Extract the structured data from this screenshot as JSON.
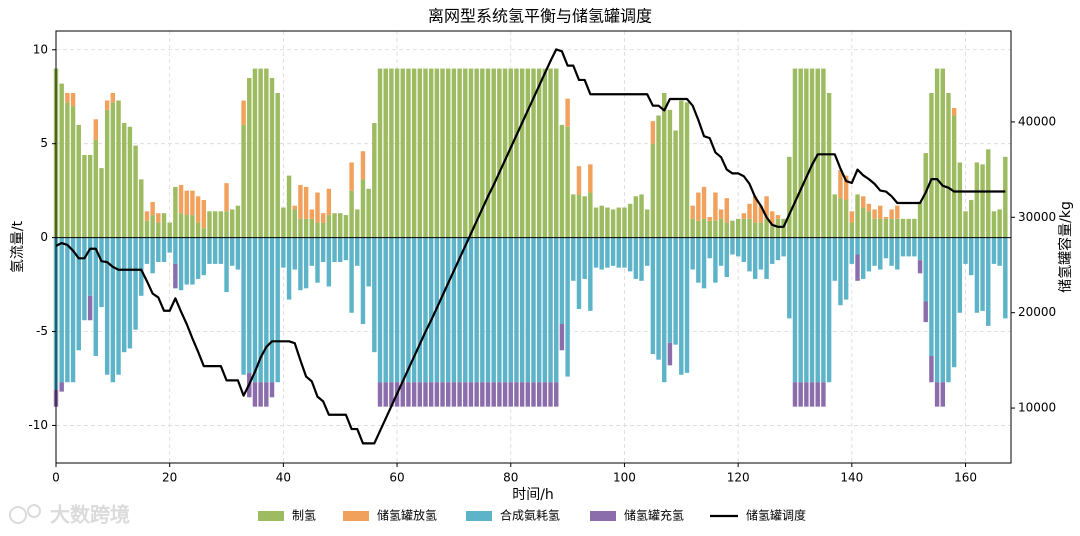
{
  "chart_data": {
    "type": "bar",
    "title": "离网型系统氢平衡与储氢罐调度",
    "x_label": "时间/h",
    "y_label": "氢流量/t",
    "y2_label": "储氢罐容量/kg",
    "watermark": "大数跨境",
    "xlim": [
      0,
      168
    ],
    "ylim": [
      -12,
      11
    ],
    "y2lim": [
      4240,
      49530
    ],
    "xticks": [
      0,
      20,
      40,
      60,
      80,
      100,
      120,
      140,
      160
    ],
    "yticks": [
      -10,
      -5,
      0,
      5,
      10
    ],
    "y2ticks": [
      10000,
      20000,
      30000,
      40000
    ],
    "grid": true,
    "legend": "bottom",
    "x": [
      0,
      1,
      2,
      3,
      4,
      5,
      6,
      7,
      8,
      9,
      10,
      11,
      12,
      13,
      14,
      15,
      16,
      17,
      18,
      19,
      20,
      21,
      22,
      23,
      24,
      25,
      26,
      27,
      28,
      29,
      30,
      31,
      32,
      33,
      34,
      35,
      36,
      37,
      38,
      39,
      40,
      41,
      42,
      43,
      44,
      45,
      46,
      47,
      48,
      49,
      50,
      51,
      52,
      53,
      54,
      55,
      56,
      57,
      58,
      59,
      60,
      61,
      62,
      63,
      64,
      65,
      66,
      67,
      68,
      69,
      70,
      71,
      72,
      73,
      74,
      75,
      76,
      77,
      78,
      79,
      80,
      81,
      82,
      83,
      84,
      85,
      86,
      87,
      88,
      89,
      90,
      91,
      92,
      93,
      94,
      95,
      96,
      97,
      98,
      99,
      100,
      101,
      102,
      103,
      104,
      105,
      106,
      107,
      108,
      109,
      110,
      111,
      112,
      113,
      114,
      115,
      116,
      117,
      118,
      119,
      120,
      121,
      122,
      123,
      124,
      125,
      126,
      127,
      128,
      129,
      130,
      131,
      132,
      133,
      134,
      135,
      136,
      137,
      138,
      139,
      140,
      141,
      142,
      143,
      144,
      145,
      146,
      147,
      148,
      149,
      150,
      151,
      152,
      153,
      154,
      155,
      156,
      157,
      158,
      159,
      160,
      161,
      162,
      163,
      164,
      165,
      166,
      167
    ],
    "series": [
      {
        "name": "制氢",
        "color": "#9dbb61",
        "values": [
          9.0,
          8.2,
          7.2,
          7.0,
          6.0,
          4.4,
          4.4,
          5.2,
          3.7,
          6.8,
          7.2,
          7.3,
          6.1,
          5.9,
          4.9,
          3.1,
          0.9,
          1.2,
          0.8,
          1.3,
          0.8,
          2.7,
          1.3,
          1.2,
          1.2,
          0.8,
          0.5,
          1.4,
          1.4,
          1.4,
          1.4,
          1.5,
          1.7,
          6.0,
          8.5,
          9.0,
          9.0,
          9.0,
          8.5,
          7.7,
          1.6,
          3.3,
          1.5,
          1.0,
          1.0,
          1.0,
          0.8,
          0.8,
          1.2,
          1.3,
          1.3,
          1.2,
          2.5,
          1.5,
          3.1,
          2.6,
          6.1,
          9.0,
          9.0,
          9.0,
          9.0,
          9.0,
          9.0,
          9.0,
          9.0,
          9.0,
          9.0,
          9.0,
          9.0,
          9.0,
          9.0,
          9.0,
          9.0,
          9.0,
          9.0,
          9.0,
          9.0,
          9.0,
          9.0,
          9.0,
          9.0,
          9.0,
          9.0,
          9.0,
          9.0,
          9.0,
          9.0,
          9.0,
          9.0,
          6.0,
          5.9,
          2.3,
          2.3,
          2.2,
          2.4,
          1.6,
          1.7,
          1.6,
          1.5,
          1.6,
          1.6,
          1.8,
          2.2,
          2.3,
          1.5,
          5.0,
          6.5,
          7.7,
          6.8,
          5.7,
          7.3,
          7.2,
          1.0,
          0.9,
          1.0,
          0.9,
          0.9,
          1.0,
          0.8,
          0.9,
          1.0,
          1.0,
          1.0,
          0.8,
          0.8,
          1.0,
          0.6,
          1.0,
          1.0,
          4.3,
          9.0,
          9.0,
          9.0,
          9.0,
          9.0,
          9.0,
          7.7,
          2.3,
          2.1,
          2.0,
          0.8,
          2.3,
          1.6,
          1.4,
          1.0,
          1.0,
          1.0,
          1.0,
          1.0,
          1.0,
          1.0,
          1.0,
          1.9,
          4.5,
          7.7,
          9.0,
          9.0,
          7.7,
          6.5,
          4.0,
          1.4,
          2.0,
          4.0,
          3.9,
          4.7,
          1.4,
          1.5,
          4.3
        ]
      },
      {
        "name": "储氢罐放氢",
        "color": "#f2a15c",
        "values": [
          0,
          0,
          0.5,
          0.7,
          0,
          0,
          0,
          1.1,
          0,
          0.5,
          0.5,
          0,
          0,
          0,
          0,
          0,
          0.5,
          0.7,
          0.5,
          0,
          0,
          0,
          1.5,
          1.3,
          1.3,
          1.4,
          1.5,
          0,
          0,
          0,
          1.5,
          0,
          0,
          1.3,
          0,
          0,
          0,
          0,
          0,
          0,
          0,
          0,
          0.2,
          1.8,
          1.7,
          0.5,
          1.6,
          0.5,
          1.4,
          0,
          0,
          0,
          1.5,
          0,
          1.5,
          0,
          0,
          0,
          0,
          0,
          0,
          0,
          0,
          0,
          0,
          0,
          0,
          0,
          0,
          0,
          0,
          0,
          0,
          0,
          0,
          0,
          0,
          0,
          0,
          0,
          0,
          0,
          0,
          0,
          0,
          0,
          0,
          0,
          0,
          0,
          1.5,
          0,
          1.5,
          0,
          1.5,
          0,
          0,
          0,
          0,
          0,
          0,
          0,
          0,
          0,
          0,
          1.2,
          0,
          0,
          0,
          0,
          0,
          0,
          0.7,
          1.5,
          1.7,
          0.2,
          1.5,
          0.5,
          1.3,
          0,
          0,
          0.3,
          0.8,
          1.4,
          0.9,
          1.2,
          0.8,
          0.2,
          0,
          0,
          0,
          0,
          0,
          0,
          0,
          0,
          0,
          0,
          1.5,
          1.3,
          0.6,
          0,
          0.6,
          0.4,
          0.5,
          0.7,
          0.1,
          0.5,
          0.7,
          0,
          0,
          0,
          0,
          0,
          0,
          0,
          0,
          0,
          0.4,
          0,
          0,
          0,
          0,
          0,
          0,
          0,
          0,
          0
        ]
      },
      {
        "name": "合成氨耗氢",
        "color": "#5db4c9",
        "values": [
          -8.1,
          -7.7,
          -7.7,
          -7.7,
          -6.0,
          -4.4,
          -3.1,
          -6.3,
          -3.7,
          -7.3,
          -7.7,
          -7.3,
          -6.1,
          -5.9,
          -4.9,
          -3.1,
          -1.4,
          -1.9,
          -1.3,
          -1.3,
          -0.8,
          -1.4,
          -2.8,
          -2.5,
          -2.5,
          -2.2,
          -2.0,
          -1.4,
          -1.4,
          -1.4,
          -2.9,
          -1.5,
          -1.7,
          -7.3,
          -7.2,
          -7.7,
          -7.7,
          -7.7,
          -7.7,
          -7.7,
          -1.6,
          -3.3,
          -1.7,
          -2.8,
          -2.7,
          -1.5,
          -2.4,
          -1.3,
          -2.6,
          -1.3,
          -1.3,
          -1.2,
          -4.0,
          -1.5,
          -4.6,
          -2.6,
          -6.1,
          -7.7,
          -7.7,
          -7.7,
          -7.7,
          -7.7,
          -7.7,
          -7.7,
          -7.7,
          -7.7,
          -7.7,
          -7.7,
          -7.7,
          -7.7,
          -7.7,
          -7.7,
          -7.7,
          -7.7,
          -7.7,
          -7.7,
          -7.7,
          -7.7,
          -7.7,
          -7.7,
          -7.7,
          -7.7,
          -7.7,
          -7.7,
          -7.7,
          -7.7,
          -7.7,
          -7.7,
          -7.7,
          -4.6,
          -7.4,
          -2.3,
          -3.8,
          -2.2,
          -3.9,
          -1.6,
          -1.7,
          -1.6,
          -1.5,
          -1.6,
          -1.6,
          -1.8,
          -2.2,
          -2.3,
          -1.5,
          -6.2,
          -6.5,
          -7.7,
          -5.6,
          -5.7,
          -7.3,
          -7.2,
          -1.7,
          -2.4,
          -2.7,
          -1.1,
          -2.4,
          -1.5,
          -2.1,
          -0.9,
          -1.0,
          -1.3,
          -1.8,
          -2.2,
          -1.7,
          -2.2,
          -1.4,
          -1.2,
          -1.0,
          -4.3,
          -7.7,
          -7.7,
          -7.7,
          -7.7,
          -7.7,
          -7.7,
          -7.7,
          -2.3,
          -3.6,
          -3.3,
          -1.4,
          -0.9,
          -2.2,
          -1.8,
          -1.5,
          -1.7,
          -1.1,
          -1.5,
          -1.7,
          -1.0,
          -1.0,
          -1.0,
          -1.2,
          -3.4,
          -6.3,
          -7.7,
          -7.7,
          -7.7,
          -6.9,
          -4.0,
          -1.4,
          -2.0,
          -4.0,
          -3.9,
          -4.7,
          -1.4,
          -1.5,
          -4.3
        ]
      },
      {
        "name": "储氢罐充氢",
        "color": "#8c6dab",
        "values": [
          -0.9,
          -0.5,
          0,
          0,
          0,
          0,
          -1.3,
          0,
          0,
          0,
          0,
          0,
          0,
          0,
          0,
          0,
          0,
          0,
          0,
          0,
          0,
          -1.3,
          0,
          0,
          0,
          0,
          0,
          0,
          0,
          0,
          0,
          0,
          0,
          0,
          -1.3,
          -1.3,
          -1.3,
          -1.3,
          -0.8,
          0,
          0,
          0,
          0,
          0,
          0,
          0,
          0,
          0,
          0,
          0,
          0,
          0,
          0,
          0,
          0,
          0,
          0,
          -1.3,
          -1.3,
          -1.3,
          -1.3,
          -1.3,
          -1.3,
          -1.3,
          -1.3,
          -1.3,
          -1.3,
          -1.3,
          -1.3,
          -1.3,
          -1.3,
          -1.3,
          -1.3,
          -1.3,
          -1.3,
          -1.3,
          -1.3,
          -1.3,
          -1.3,
          -1.3,
          -1.3,
          -1.3,
          -1.3,
          -1.3,
          -1.3,
          -1.3,
          -1.3,
          -1.3,
          -1.3,
          -1.4,
          0,
          0,
          0,
          0,
          0,
          0,
          0,
          0,
          0,
          0,
          0,
          0,
          0,
          0,
          0,
          0,
          0,
          0,
          -1.2,
          0,
          0,
          0,
          0,
          0,
          0,
          0,
          0,
          0,
          0,
          0,
          0,
          0,
          0,
          0,
          0,
          0,
          0,
          0,
          0,
          0,
          -1.3,
          -1.3,
          -1.3,
          -1.3,
          -1.3,
          -1.3,
          0,
          0,
          0,
          0,
          0,
          -1.4,
          0,
          0,
          0,
          0,
          0,
          0,
          0,
          0,
          0,
          0,
          -0.7,
          -1.1,
          -1.4,
          -1.3,
          -1.3,
          0,
          0,
          0,
          0,
          0,
          0,
          0,
          0,
          0,
          0,
          0
        ]
      },
      {
        "name": "储氢罐调度",
        "color": "#000000",
        "type": "line",
        "axis": "y2",
        "values": [
          27000,
          27300,
          27100,
          26500,
          25700,
          25700,
          26700,
          26700,
          25400,
          25300,
          24800,
          24500,
          24500,
          24500,
          24500,
          24500,
          23300,
          22000,
          21600,
          20200,
          20200,
          21500,
          20100,
          18800,
          17300,
          15900,
          14400,
          14400,
          14400,
          14400,
          12900,
          12900,
          12900,
          11300,
          12500,
          13800,
          15300,
          16400,
          17000,
          17000,
          17000,
          17000,
          16800,
          15000,
          13300,
          12800,
          11200,
          10700,
          9300,
          9300,
          9300,
          9300,
          7800,
          7800,
          6300,
          6300,
          6300,
          7600,
          8900,
          10200,
          11500,
          12800,
          14100,
          15400,
          16700,
          18000,
          19200,
          20500,
          21800,
          23100,
          24400,
          25700,
          27000,
          28300,
          29600,
          30900,
          32200,
          33400,
          34700,
          36000,
          37300,
          38600,
          39900,
          41200,
          42500,
          43800,
          45100,
          46400,
          47600,
          47400,
          45900,
          45900,
          44400,
          44400,
          42900,
          42900,
          42900,
          42900,
          42900,
          42900,
          42900,
          42900,
          42900,
          42900,
          42900,
          41700,
          41700,
          41200,
          42400,
          42400,
          42400,
          42400,
          41700,
          40200,
          38500,
          38300,
          36800,
          36300,
          35000,
          34600,
          34600,
          34300,
          33500,
          32100,
          31200,
          30000,
          29200,
          29000,
          29000,
          30300,
          31600,
          32900,
          34200,
          35500,
          36600,
          36600,
          36600,
          36600,
          35100,
          33800,
          33600,
          35000,
          34400,
          34000,
          33500,
          32800,
          32700,
          32200,
          31500,
          31500,
          31500,
          31500,
          31500,
          32600,
          34000,
          34000,
          33300,
          33100,
          32700,
          32700,
          32700,
          32700,
          32700,
          32700,
          32700,
          32700,
          32700,
          32700
        ]
      }
    ]
  }
}
